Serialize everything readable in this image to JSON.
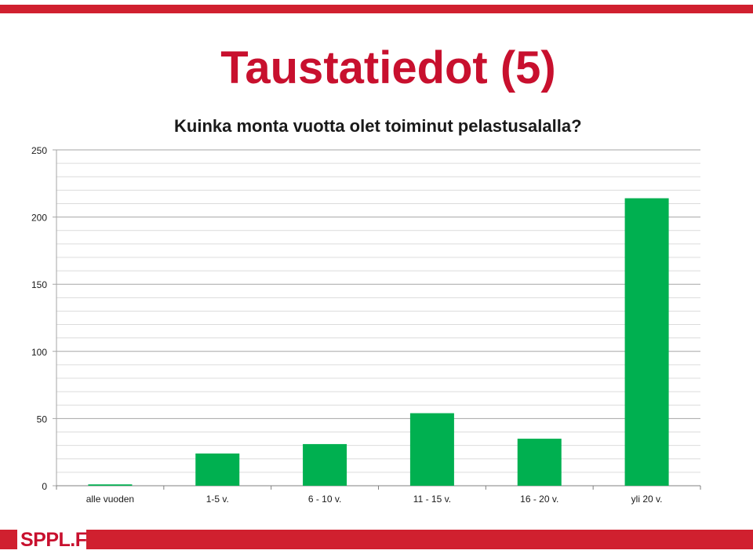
{
  "slide": {
    "title": "Taustatiedot (5)",
    "logo_text": "SPPL.FI",
    "brand_color": "#c8102e"
  },
  "chart_data": {
    "type": "bar",
    "title": "Kuinka monta vuotta olet toiminut pelastusalalla?",
    "categories": [
      "alle vuoden",
      "1-5 v.",
      "6 - 10 v.",
      "11 - 15 v.",
      "16 - 20 v.",
      "yli 20 v."
    ],
    "values": [
      1,
      24,
      31,
      54,
      35,
      214
    ],
    "ylim": [
      0,
      250
    ],
    "yticks": [
      0,
      50,
      100,
      150,
      200,
      250
    ],
    "ytick_labels": [
      "0",
      "50",
      "100",
      "150",
      "200",
      "250"
    ],
    "grid": true,
    "minor_grid_step": 10,
    "bar_color": "#00b050"
  }
}
